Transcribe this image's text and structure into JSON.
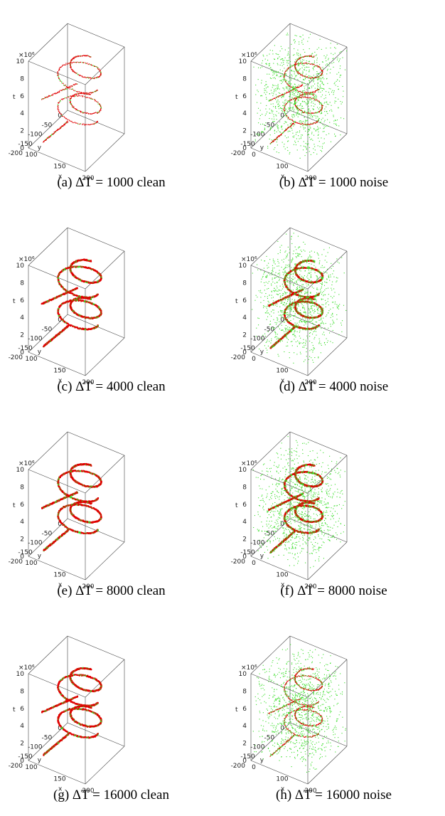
{
  "chart_data": [
    {
      "type": "scatter",
      "subtitle": "(a) ΔT = 1000 clean",
      "delta_t": 1000,
      "condition": "clean",
      "density": "sparse",
      "xlabel": "x",
      "ylabel": "y",
      "zlabel": "t",
      "z_multiplier": "×10⁶",
      "xlim": [
        100,
        200
      ],
      "ylim": [
        -200,
        0
      ],
      "zlim": [
        0,
        10
      ],
      "xticks": [
        100,
        150,
        200
      ],
      "yticks": [
        0,
        -50,
        -100,
        -150,
        -200
      ],
      "zticks": [
        0,
        2,
        4,
        6,
        8,
        10
      ],
      "series": [
        {
          "name": "",
          "color": "#e00000"
        },
        {
          "name": "",
          "color": "#33dd22"
        }
      ]
    },
    {
      "type": "scatter",
      "subtitle": "(b) ΔT = 1000 noise",
      "delta_t": 1000,
      "condition": "noise",
      "density": "sparse",
      "xlabel": "x",
      "ylabel": "y",
      "zlabel": "t",
      "z_multiplier": "×10⁶",
      "xlim": [
        0,
        200
      ],
      "ylim": [
        -200,
        0
      ],
      "zlim": [
        0,
        10
      ],
      "xticks": [
        0,
        100,
        200
      ],
      "yticks": [
        0,
        -50,
        -100,
        -150,
        -200
      ],
      "zticks": [
        0,
        2,
        4,
        6,
        8,
        10
      ],
      "series": [
        {
          "name": "",
          "color": "#e00000"
        },
        {
          "name": "",
          "color": "#33dd22"
        }
      ]
    },
    {
      "type": "scatter",
      "subtitle": "(c) ΔT = 4000 clean",
      "delta_t": 4000,
      "condition": "clean",
      "density": "dense",
      "xlabel": "x",
      "ylabel": "y",
      "zlabel": "t",
      "z_multiplier": "×10⁶",
      "xlim": [
        100,
        200
      ],
      "ylim": [
        -200,
        0
      ],
      "zlim": [
        0,
        10
      ],
      "xticks": [
        100,
        150,
        200
      ],
      "yticks": [
        0,
        -50,
        -100,
        -150,
        -200
      ],
      "zticks": [
        0,
        2,
        4,
        6,
        8,
        10
      ],
      "series": [
        {
          "name": "",
          "color": "#e00000"
        },
        {
          "name": "",
          "color": "#33dd22"
        }
      ]
    },
    {
      "type": "scatter",
      "subtitle": "(d) ΔT = 4000 noise",
      "delta_t": 4000,
      "condition": "noise",
      "density": "dense",
      "xlabel": "x",
      "ylabel": "y",
      "zlabel": "t",
      "z_multiplier": "×10⁶",
      "xlim": [
        0,
        200
      ],
      "ylim": [
        -200,
        0
      ],
      "zlim": [
        0,
        10
      ],
      "xticks": [
        0,
        100,
        200
      ],
      "yticks": [
        0,
        -50,
        -100,
        -150,
        -200
      ],
      "zticks": [
        0,
        2,
        4,
        6,
        8,
        10
      ],
      "series": [
        {
          "name": "",
          "color": "#e00000"
        },
        {
          "name": "",
          "color": "#33dd22"
        }
      ]
    },
    {
      "type": "scatter",
      "subtitle": "(e) ΔT = 8000 clean",
      "delta_t": 8000,
      "condition": "clean",
      "density": "dense",
      "xlabel": "x",
      "ylabel": "y",
      "zlabel": "t",
      "z_multiplier": "×10⁶",
      "xlim": [
        100,
        200
      ],
      "ylim": [
        -200,
        0
      ],
      "zlim": [
        0,
        10
      ],
      "xticks": [
        100,
        150,
        200
      ],
      "yticks": [
        0,
        -50,
        -100,
        -150,
        -200
      ],
      "zticks": [
        0,
        2,
        4,
        6,
        8,
        10
      ],
      "series": [
        {
          "name": "",
          "color": "#e00000"
        },
        {
          "name": "",
          "color": "#33dd22"
        }
      ]
    },
    {
      "type": "scatter",
      "subtitle": "(f) ΔT = 8000 noise",
      "delta_t": 8000,
      "condition": "noise",
      "density": "dense",
      "xlabel": "x",
      "ylabel": "y",
      "zlabel": "t",
      "z_multiplier": "×10⁶",
      "xlim": [
        0,
        200
      ],
      "ylim": [
        -200,
        0
      ],
      "zlim": [
        0,
        10
      ],
      "xticks": [
        0,
        100,
        200
      ],
      "yticks": [
        0,
        -50,
        -100,
        -150,
        -200
      ],
      "zticks": [
        0,
        2,
        4,
        6,
        8,
        10
      ],
      "series": [
        {
          "name": "",
          "color": "#e00000"
        },
        {
          "name": "",
          "color": "#33dd22"
        }
      ]
    },
    {
      "type": "scatter",
      "subtitle": "(g) ΔT = 16000 clean",
      "delta_t": 16000,
      "condition": "clean",
      "density": "dense",
      "xlabel": "x",
      "ylabel": "y",
      "zlabel": "t",
      "z_multiplier": "×10⁶",
      "xlim": [
        100,
        200
      ],
      "ylim": [
        -200,
        0
      ],
      "zlim": [
        0,
        10
      ],
      "xticks": [
        100,
        150,
        200
      ],
      "yticks": [
        0,
        -50,
        -100,
        -150,
        -200
      ],
      "zticks": [
        0,
        2,
        4,
        6,
        8,
        10
      ],
      "series": [
        {
          "name": "",
          "color": "#e00000"
        },
        {
          "name": "",
          "color": "#33dd22"
        }
      ]
    },
    {
      "type": "scatter",
      "subtitle": "(h) ΔT = 16000 noise",
      "delta_t": 16000,
      "condition": "noise",
      "density": "sparse",
      "xlabel": "x",
      "ylabel": "y",
      "zlabel": "t",
      "z_multiplier": "×10⁶",
      "xlim": [
        0,
        200
      ],
      "ylim": [
        -200,
        0
      ],
      "zlim": [
        0,
        10
      ],
      "xticks": [
        0,
        100,
        200
      ],
      "yticks": [
        0,
        -50,
        -100,
        -150,
        -200
      ],
      "zticks": [
        0,
        2,
        4,
        6,
        8,
        10
      ],
      "series": [
        {
          "name": "",
          "color": "#e00000"
        },
        {
          "name": "",
          "color": "#33dd22"
        }
      ]
    }
  ]
}
